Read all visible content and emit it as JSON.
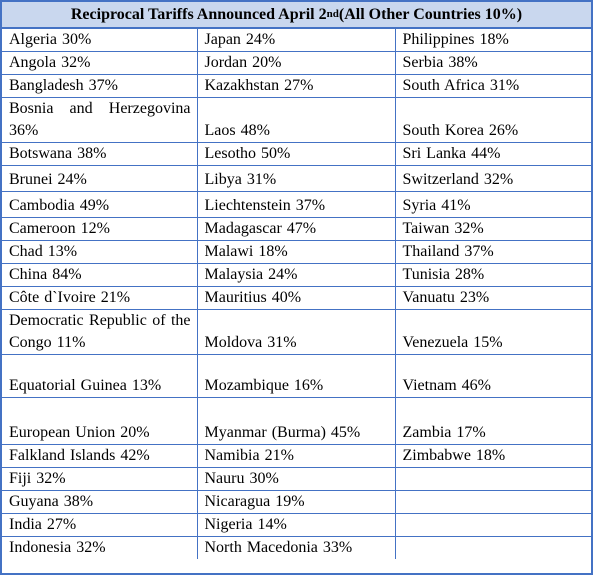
{
  "table": {
    "title_main": "Reciprocal Tariffs Announced April 2",
    "title_sup": "nd",
    "title_tail": " (All Other Countries 10%)",
    "rows": [
      [
        "Algeria  30%",
        "Japan  24%",
        "Philippines  18%"
      ],
      [
        "Angola  32%",
        "Jordan  20%",
        "Serbia  38%"
      ],
      [
        "Bangladesh  37%",
        "Kazakhstan  27%",
        "South Africa  31%"
      ],
      [
        "Bosnia and Herzegovina 36%",
        "Laos  48%",
        "South Korea  26%"
      ],
      [
        "Botswana  38%",
        "Lesotho  50%",
        "Sri Lanka  44%"
      ],
      [
        "Brunei  24%",
        "Libya  31%",
        "Switzerland  32%"
      ],
      [
        "Cambodia  49%",
        "Liechtenstein  37%",
        "Syria  41%"
      ],
      [
        "Cameroon  12%",
        "Madagascar  47%",
        "Taiwan  32%"
      ],
      [
        "Chad  13%",
        "Malawi  18%",
        "Thailand  37%"
      ],
      [
        "China 84%",
        "Malaysia  24%",
        "Tunisia  28%"
      ],
      [
        "Côte d`Ivoire  21%",
        "Mauritius  40%",
        "Vanuatu  23%"
      ],
      [
        "Democratic Republic of the Congo  11%",
        "Moldova  31%",
        "Venezuela  15%"
      ],
      [
        "Equatorial Guinea 13%",
        "Mozambique  16%",
        "Vietnam  46%"
      ],
      [
        "European Union  20%",
        "Myanmar (Burma) 45%",
        "Zambia  17%"
      ],
      [
        "Falkland Islands  42%",
        "Namibia  21%",
        "Zimbabwe  18%"
      ],
      [
        "Fiji  32%",
        "Nauru  30%",
        ""
      ],
      [
        "Guyana  38%",
        "Nicaragua  19%",
        ""
      ],
      [
        "India  27%",
        "Nigeria  14%",
        ""
      ],
      [
        "Indonesia  32%",
        "North Macedonia  33%",
        ""
      ]
    ]
  }
}
